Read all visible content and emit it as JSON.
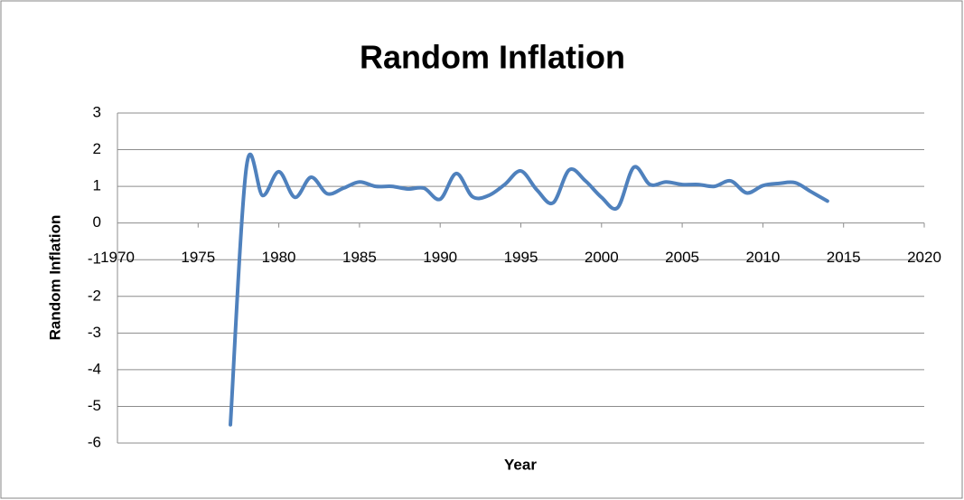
{
  "chart_data": {
    "type": "line",
    "title": "Random Inflation",
    "x_label": "Year",
    "y_label": "Random Inflation",
    "x": [
      1977,
      1978,
      1979,
      1980,
      1981,
      1982,
      1983,
      1984,
      1985,
      1986,
      1987,
      1988,
      1989,
      1990,
      1991,
      1992,
      1993,
      1994,
      1995,
      1996,
      1997,
      1998,
      1999,
      2000,
      2001,
      2002,
      2003,
      2004,
      2005,
      2006,
      2007,
      2008,
      2009,
      2010,
      2011,
      2012,
      2013,
      2014
    ],
    "series": [
      {
        "name": "Random Inflation",
        "color": "#4f81bd",
        "values": [
          -5.5,
          1.55,
          0.75,
          1.4,
          0.7,
          1.25,
          0.8,
          0.95,
          1.12,
          1.0,
          1.0,
          0.93,
          0.95,
          0.65,
          1.35,
          0.72,
          0.75,
          1.05,
          1.42,
          0.9,
          0.55,
          1.45,
          1.15,
          0.7,
          0.42,
          1.52,
          1.05,
          1.12,
          1.05,
          1.05,
          1.0,
          1.15,
          0.82,
          1.02,
          1.08,
          1.1,
          0.85,
          0.6
        ]
      }
    ],
    "xlim": [
      1970,
      2020
    ],
    "xticks": [
      1970,
      1975,
      1980,
      1985,
      1990,
      1995,
      2000,
      2005,
      2010,
      2015,
      2020
    ],
    "ylim": [
      -6,
      3
    ],
    "yticks": [
      -6,
      -5,
      -4,
      -3,
      -2,
      -1,
      0,
      1,
      2,
      3
    ],
    "grid": true,
    "smooth": true
  }
}
